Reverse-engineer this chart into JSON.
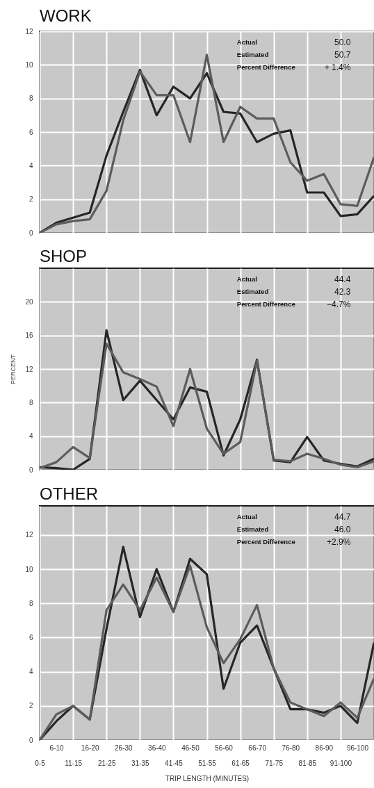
{
  "chart_data": [
    {
      "type": "line",
      "title": "WORK",
      "series": [
        {
          "color": "#262626",
          "values": [
            0,
            0.6,
            0.9,
            1.2,
            4.6,
            7.2,
            9.7,
            7.0,
            8.7,
            8.0,
            9.5,
            7.2,
            7.1,
            5.4,
            5.9,
            6.1,
            2.4,
            2.4,
            1.0,
            1.1,
            2.2
          ]
        },
        {
          "color": "#5c5c5c",
          "values": [
            0,
            0.5,
            0.7,
            0.8,
            2.5,
            6.7,
            9.6,
            8.2,
            8.2,
            5.4,
            10.6,
            5.4,
            7.5,
            6.8,
            6.8,
            4.2,
            3.1,
            3.5,
            1.7,
            1.6,
            4.5
          ]
        }
      ],
      "ylim": [
        0,
        12
      ],
      "yticks": [
        0,
        2,
        4,
        6,
        8,
        10,
        12
      ],
      "grid": true,
      "tick_labels": "y",
      "annotations": [
        "Actual",
        "50.0",
        "Estimated",
        "50.7",
        "Percent Difference",
        "+ 1.4%"
      ]
    },
    {
      "type": "line",
      "title": "SHOP",
      "ylabel": "PERCENT",
      "series": [
        {
          "color": "#262626",
          "values": [
            0.3,
            0.2,
            0,
            1.3,
            16.6,
            8.3,
            10.6,
            8.3,
            6.0,
            9.8,
            9.3,
            1.7,
            6.0,
            13.1,
            1.1,
            0.9,
            3.9,
            1.1,
            0.7,
            0.4,
            1.3
          ]
        },
        {
          "color": "#5c5c5c",
          "values": [
            0.2,
            0.9,
            2.7,
            1.4,
            15.0,
            11.6,
            10.8,
            9.9,
            5.2,
            12.0,
            4.9,
            1.9,
            3.3,
            13.0,
            1.2,
            1.0,
            1.9,
            1.3,
            0.6,
            0.3,
            1.0
          ]
        }
      ],
      "ylim": [
        0,
        24
      ],
      "yticks": [
        0,
        4,
        8,
        12,
        16,
        20
      ],
      "grid": true,
      "tick_labels": "y",
      "annotations": [
        "Actual",
        "44.4",
        "Estimated",
        "42.3",
        "Percent Difference",
        "−4.7%"
      ]
    },
    {
      "type": "line",
      "title": "OTHER",
      "xlabel": "TRIP LENGTH (MINUTES)",
      "categories": [
        "0-5",
        "6-10",
        "11-15",
        "16-20",
        "21-25",
        "26-30",
        "31-35",
        "36-40",
        "41-45",
        "46-50",
        "51-55",
        "56-60",
        "61-65",
        "66-70",
        "71-75",
        "76-80",
        "81-85",
        "86-90",
        "91-100",
        "96-100",
        null
      ],
      "series": [
        {
          "color": "#262626",
          "values": [
            0,
            1.1,
            2.0,
            1.2,
            6.5,
            11.3,
            7.2,
            10.0,
            7.5,
            10.6,
            9.7,
            3.0,
            5.7,
            6.7,
            4.2,
            1.8,
            1.8,
            1.6,
            2.0,
            1.0,
            5.7
          ]
        },
        {
          "color": "#5c5c5c",
          "values": [
            0,
            1.5,
            2.0,
            1.2,
            7.6,
            9.1,
            7.6,
            9.5,
            7.5,
            10.2,
            6.6,
            4.5,
            5.9,
            7.9,
            4.2,
            2.2,
            1.8,
            1.4,
            2.2,
            1.3,
            3.6
          ]
        }
      ],
      "ylim": [
        0,
        13.7
      ],
      "yticks": [
        0,
        2,
        4,
        6,
        8,
        10,
        12
      ],
      "grid": true,
      "annotations": [
        "Actual",
        "44.7",
        "Estimated",
        "46.0",
        "Percent Difference",
        "+2.9%"
      ]
    }
  ]
}
